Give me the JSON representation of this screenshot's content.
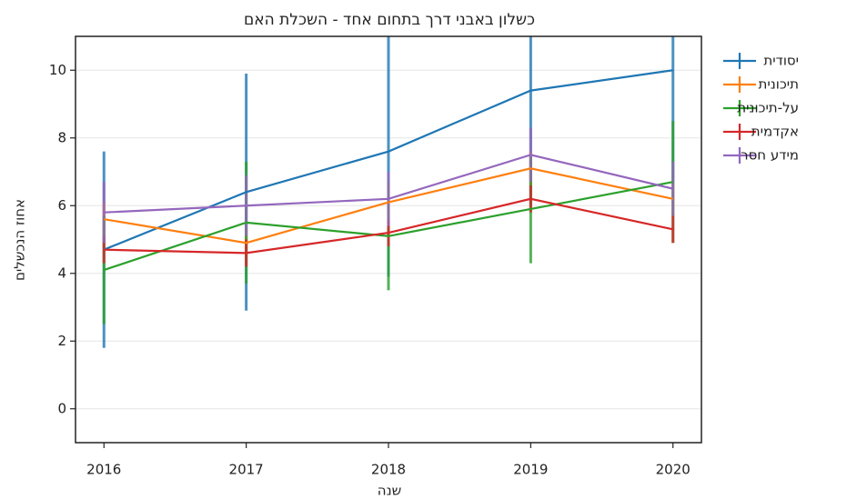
{
  "chart_data": {
    "type": "line",
    "title": "כשלון באבני דרך בתחום אחד - השכלת האם",
    "x_label": "שנה",
    "y_label": "אחוז הנכשלים",
    "x": [
      2016,
      2017,
      2018,
      2019,
      2020
    ],
    "xlim": [
      2015.8,
      2020.2
    ],
    "xticks": [
      2016,
      2017,
      2018,
      2019,
      2020
    ],
    "ylim": [
      -1,
      11
    ],
    "yticks": [
      0,
      2,
      4,
      6,
      8,
      10
    ],
    "grid": true,
    "legend": "outside right",
    "series": [
      {
        "name": "יסודית",
        "color": "#1f77b4",
        "values": [
          4.7,
          6.4,
          7.6,
          9.4,
          10.0
        ],
        "errors": [
          2.9,
          3.5,
          3.7,
          3.4,
          3.3
        ]
      },
      {
        "name": "תיכונית",
        "color": "#ff7f0e",
        "values": [
          5.6,
          4.9,
          6.1,
          7.1,
          6.2
        ],
        "errors": [
          0.5,
          0.4,
          0.5,
          0.5,
          0.5
        ]
      },
      {
        "name": "על-תיכונית",
        "color": "#2ca02c",
        "values": [
          4.1,
          5.5,
          5.1,
          5.9,
          6.7
        ],
        "errors": [
          1.6,
          1.8,
          1.6,
          1.6,
          1.8
        ]
      },
      {
        "name": "אקדמית",
        "color": "#d62728",
        "values": [
          4.7,
          4.6,
          5.2,
          6.2,
          5.3
        ],
        "errors": [
          0.4,
          0.4,
          0.4,
          0.4,
          0.4
        ]
      },
      {
        "name": "מידע חסר",
        "color": "#9467bd",
        "values": [
          5.8,
          6.0,
          6.2,
          7.5,
          6.5
        ],
        "errors": [
          0.9,
          0.9,
          0.8,
          0.8,
          0.8
        ]
      }
    ]
  }
}
